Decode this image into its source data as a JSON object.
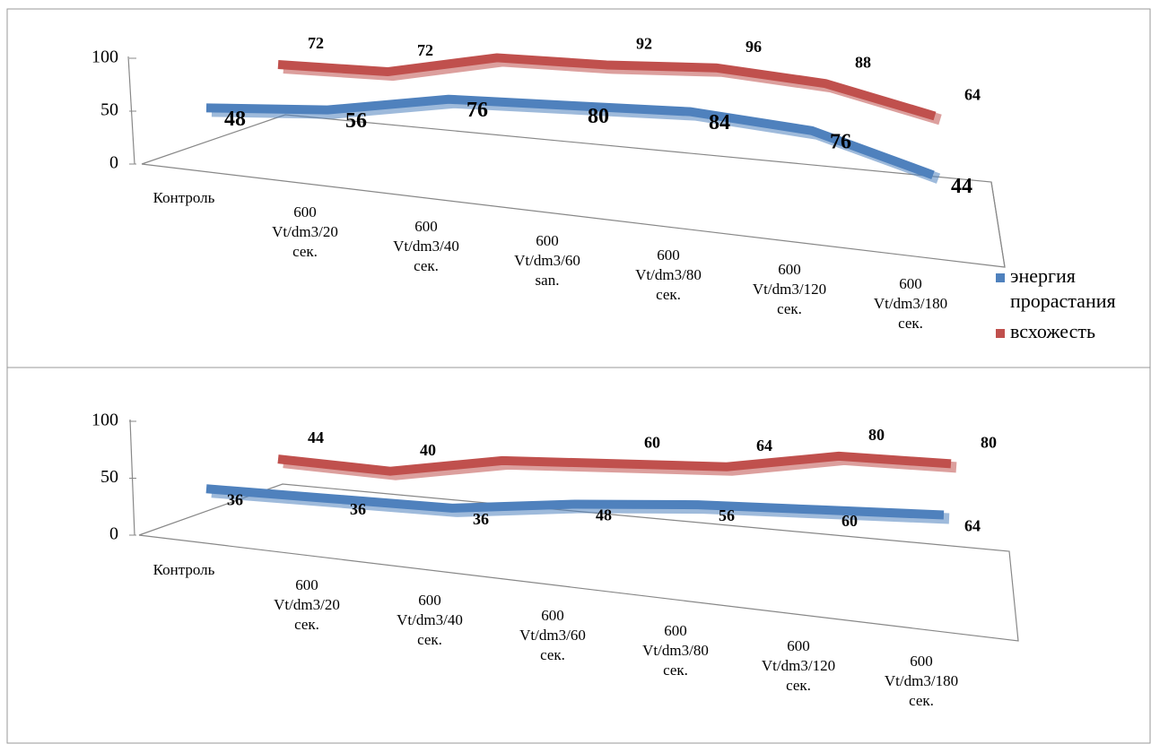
{
  "chart_data": [
    {
      "type": "line3d",
      "categories": [
        "Контроль",
        "600 Vt/dm3/20 сек.",
        "600 Vt/dm3/40 сек.",
        "600 Vt/dm3/60 san.",
        "600 Vt/dm3/80 сек.",
        "600 Vt/dm3/120 сек.",
        "600 Vt/dm3/180 сек."
      ],
      "series": [
        {
          "name": "энергия прорастания",
          "color": "#4f81bd",
          "values": [
            48,
            56,
            76,
            80,
            84,
            76,
            44
          ]
        },
        {
          "name": "всхожесть",
          "color": "#c0504d",
          "values": [
            72,
            72,
            92,
            92,
            96,
            88,
            64
          ],
          "value_labels": [
            72,
            72,
            null,
            92,
            96,
            88,
            64
          ]
        }
      ],
      "ylim": [
        0,
        100
      ],
      "yticks": [
        0,
        50,
        100
      ],
      "legend": "right"
    },
    {
      "type": "line3d",
      "categories": [
        "Контроль",
        "600 Vt/dm3/20 сек.",
        "600 Vt/dm3/40 сек.",
        "600 Vt/dm3/60 сек.",
        "600 Vt/dm3/80 сек.",
        "600 Vt/dm3/120 сек.",
        "600 Vt/dm3/180 сек."
      ],
      "series": [
        {
          "color": "#4f81bd",
          "values": [
            36,
            36,
            36,
            48,
            56,
            60,
            64
          ]
        },
        {
          "color": "#c0504d",
          "values": [
            44,
            40,
            56,
            60,
            64,
            80,
            80
          ],
          "value_labels": [
            44,
            40,
            null,
            60,
            64,
            80,
            80
          ]
        }
      ],
      "ylim": [
        0,
        100
      ],
      "yticks": [
        0,
        50,
        100
      ]
    }
  ]
}
